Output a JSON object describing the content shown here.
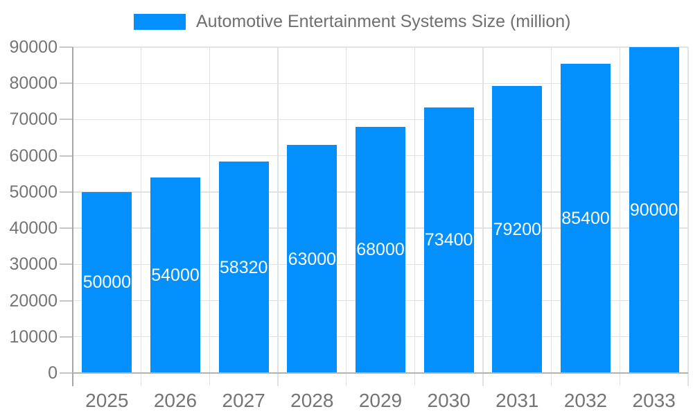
{
  "legend": {
    "label": "Automotive Entertainment Systems Size (million)"
  },
  "chart_data": {
    "type": "bar",
    "title": "Automotive Entertainment Systems Size (million)",
    "categories": [
      "2025",
      "2026",
      "2027",
      "2028",
      "2029",
      "2030",
      "2031",
      "2032",
      "2033"
    ],
    "values": [
      50000,
      54000,
      58320,
      63000,
      68000,
      73400,
      79200,
      85400,
      90000
    ],
    "value_labels": [
      "50000",
      "54000",
      "58320",
      "63000",
      "68000",
      "73400",
      "79200",
      "85400",
      "90000"
    ],
    "xlabel": "",
    "ylabel": "",
    "ylim": [
      0,
      90000
    ],
    "ytick_interval": 10000,
    "ytick_labels": [
      "0",
      "10000",
      "20000",
      "30000",
      "40000",
      "50000",
      "60000",
      "70000",
      "80000",
      "90000"
    ],
    "grid": true,
    "legend_position": "top-center",
    "bar_color": "#0390fc",
    "value_label_color": "#ffffff",
    "axis_text_color": "#757575",
    "gridline_color": "#e2e2e2",
    "axis_line_color": "#a6a6a6"
  }
}
